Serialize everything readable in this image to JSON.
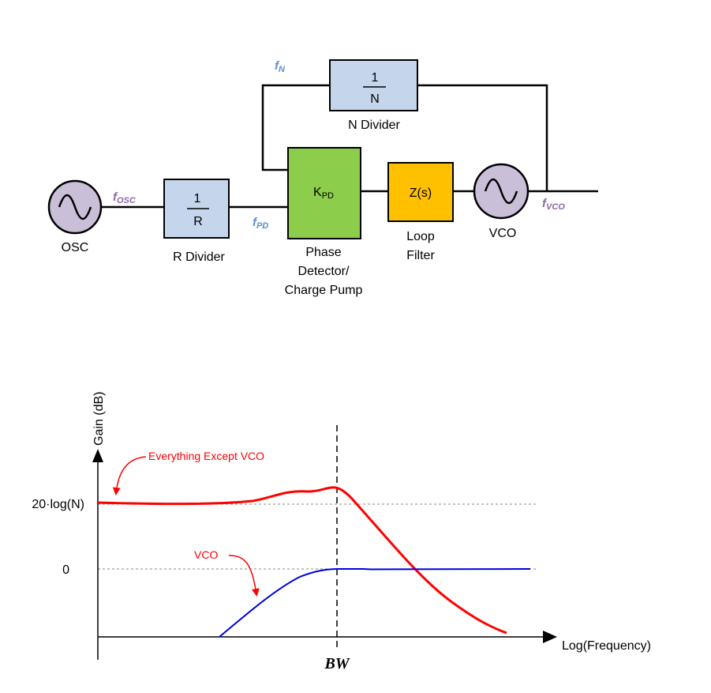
{
  "colors": {
    "divider_fill": "#c5d6ec",
    "pd_fill": "#8ccd4c",
    "filter_fill": "#ffc000",
    "osc_fill": "#c9bfd8",
    "fn_color": "#5b8fcf",
    "fosc_color": "#8c68a8",
    "red_curve": "#ff0000",
    "blue_curve": "#0000dd"
  },
  "block_diagram": {
    "osc": {
      "label": "OSC",
      "icon": "sine-wave-icon"
    },
    "r_divider": {
      "numerator": "1",
      "denominator": "R",
      "label": "R Divider"
    },
    "n_divider": {
      "numerator": "1",
      "denominator": "N",
      "label": "N Divider"
    },
    "phase_detector": {
      "symbol": "K",
      "symbol_sub": "PD",
      "label_lines": [
        "Phase",
        "Detector/",
        "Charge Pump"
      ]
    },
    "loop_filter": {
      "symbol": "Z(s)",
      "label_lines": [
        "Loop",
        "Filter"
      ]
    },
    "vco": {
      "label": "VCO",
      "icon": "sine-wave-icon"
    },
    "signals": {
      "fosc": {
        "main": "f",
        "sub": "OSC"
      },
      "fpd": {
        "main": "f",
        "sub": "PD"
      },
      "fn": {
        "main": "f",
        "sub": "N"
      },
      "fvco": {
        "main": "f",
        "sub": "VCO"
      }
    }
  },
  "chart_data": {
    "type": "line",
    "ylabel": "Gain (dB)",
    "xlabel": "Log(Frequency)",
    "y_ticks": [
      "20·log(N)",
      "0"
    ],
    "marker_label": "BW",
    "series": [
      {
        "name": "Everything Except VCO",
        "color": "#ff0000",
        "description_points": [
          [
            0.0,
            1.0
          ],
          [
            0.45,
            1.0
          ],
          [
            0.55,
            1.06
          ],
          [
            0.62,
            1.07
          ],
          [
            0.68,
            1.1
          ],
          [
            0.78,
            0.5
          ],
          [
            0.9,
            -0.3
          ],
          [
            1.0,
            -0.8
          ]
        ]
      },
      {
        "name": "VCO",
        "color": "#0000dd",
        "description_points": [
          [
            0.28,
            -1.0
          ],
          [
            0.4,
            -0.55
          ],
          [
            0.5,
            -0.15
          ],
          [
            0.58,
            -0.01
          ],
          [
            0.62,
            0.0
          ],
          [
            0.7,
            0.0
          ],
          [
            1.0,
            0.0
          ]
        ]
      }
    ],
    "grid": false,
    "reference_lines": [
      "20·log(N)",
      "0",
      "BW"
    ]
  }
}
